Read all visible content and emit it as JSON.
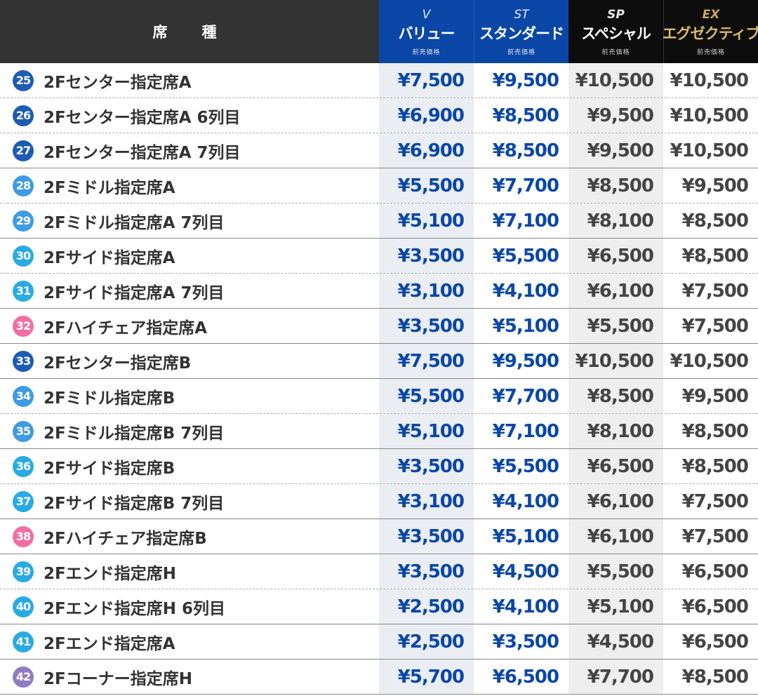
{
  "header": {
    "seat_label": "席　種",
    "columns": [
      {
        "abbr": "V",
        "name": "バリュー",
        "sub": "前売価格"
      },
      {
        "abbr": "ST",
        "name": "スタンダード",
        "sub": "前売価格"
      },
      {
        "abbr": "SP",
        "name": "スペシャル",
        "sub": "前売価格"
      },
      {
        "abbr": "EX",
        "name": "エグゼクティブ",
        "sub": "前売価格"
      }
    ]
  },
  "colors": {
    "value_blue": "#0a47a6",
    "header_dark": "#333333",
    "ex_gold": "#d9b86a"
  },
  "rows": [
    {
      "num": "25",
      "name": "2Fセンター指定席A",
      "badge_color": "#1e5cb3",
      "prices": [
        "¥7,500",
        "¥9,500",
        "¥10,500",
        "¥10,500"
      ],
      "border": "dotted"
    },
    {
      "num": "26",
      "name": "2Fセンター指定席A 6列目",
      "badge_color": "#1e5cb3",
      "prices": [
        "¥6,900",
        "¥8,500",
        "¥9,500",
        "¥10,500"
      ],
      "border": "dotted"
    },
    {
      "num": "27",
      "name": "2Fセンター指定席A 7列目",
      "badge_color": "#1e5cb3",
      "prices": [
        "¥6,900",
        "¥8,500",
        "¥9,500",
        "¥10,500"
      ],
      "border": "solid"
    },
    {
      "num": "28",
      "name": "2Fミドル指定席A",
      "badge_color": "#3f9be0",
      "prices": [
        "¥5,500",
        "¥7,700",
        "¥8,500",
        "¥9,500"
      ],
      "border": "dotted"
    },
    {
      "num": "29",
      "name": "2Fミドル指定席A 7列目",
      "badge_color": "#3f9be0",
      "prices": [
        "¥5,100",
        "¥7,100",
        "¥8,100",
        "¥8,500"
      ],
      "border": "solid"
    },
    {
      "num": "30",
      "name": "2Fサイド指定席A",
      "badge_color": "#29abe2",
      "prices": [
        "¥3,500",
        "¥5,500",
        "¥6,500",
        "¥8,500"
      ],
      "border": "dotted"
    },
    {
      "num": "31",
      "name": "2Fサイド指定席A 7列目",
      "badge_color": "#29abe2",
      "prices": [
        "¥3,100",
        "¥4,100",
        "¥6,100",
        "¥7,500"
      ],
      "border": "solid"
    },
    {
      "num": "32",
      "name": "2Fハイチェア指定席A",
      "badge_color": "#f06fa0",
      "prices": [
        "¥3,500",
        "¥5,100",
        "¥5,500",
        "¥7,500"
      ],
      "border": "solid"
    },
    {
      "num": "33",
      "name": "2Fセンター指定席B",
      "badge_color": "#1e5cb3",
      "prices": [
        "¥7,500",
        "¥9,500",
        "¥10,500",
        "¥10,500"
      ],
      "border": "solid"
    },
    {
      "num": "34",
      "name": "2Fミドル指定席B",
      "badge_color": "#3f9be0",
      "prices": [
        "¥5,500",
        "¥7,700",
        "¥8,500",
        "¥9,500"
      ],
      "border": "dotted"
    },
    {
      "num": "35",
      "name": "2Fミドル指定席B 7列目",
      "badge_color": "#3f9be0",
      "prices": [
        "¥5,100",
        "¥7,100",
        "¥8,100",
        "¥8,500"
      ],
      "border": "solid"
    },
    {
      "num": "36",
      "name": "2Fサイド指定席B",
      "badge_color": "#29abe2",
      "prices": [
        "¥3,500",
        "¥5,500",
        "¥6,500",
        "¥8,500"
      ],
      "border": "dotted"
    },
    {
      "num": "37",
      "name": "2Fサイド指定席B 7列目",
      "badge_color": "#29abe2",
      "prices": [
        "¥3,100",
        "¥4,100",
        "¥6,100",
        "¥7,500"
      ],
      "border": "solid"
    },
    {
      "num": "38",
      "name": "2Fハイチェア指定席B",
      "badge_color": "#f06fa0",
      "prices": [
        "¥3,500",
        "¥5,100",
        "¥6,100",
        "¥7,500"
      ],
      "border": "solid"
    },
    {
      "num": "39",
      "name": "2Fエンド指定席H",
      "badge_color": "#29abe2",
      "prices": [
        "¥3,500",
        "¥4,500",
        "¥5,500",
        "¥6,500"
      ],
      "border": "dotted"
    },
    {
      "num": "40",
      "name": "2Fエンド指定席H 6列目",
      "badge_color": "#29abe2",
      "prices": [
        "¥2,500",
        "¥4,100",
        "¥5,100",
        "¥6,500"
      ],
      "border": "solid"
    },
    {
      "num": "41",
      "name": "2Fエンド指定席A",
      "badge_color": "#29abe2",
      "prices": [
        "¥2,500",
        "¥3,500",
        "¥4,500",
        "¥6,500"
      ],
      "border": "solid"
    },
    {
      "num": "42",
      "name": "2Fコーナー指定席H",
      "badge_color": "#8e7cc3",
      "prices": [
        "¥5,700",
        "¥6,500",
        "¥7,700",
        "¥8,500"
      ],
      "border": "solid"
    }
  ]
}
